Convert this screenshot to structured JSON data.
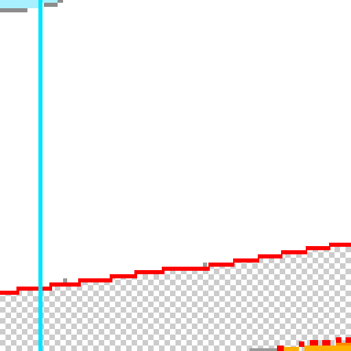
{
  "canvas": {
    "zoom_percent": 800,
    "colors": {
      "background": "#ffffff",
      "transparency_light": "#ffffff",
      "transparency_dark": "#cccccc",
      "guide_line": "#00e5ff",
      "stroke_red": "#ff0000",
      "stroke_gray": "#8c8c8c",
      "fill_light_cyan": "#a8f0ff",
      "fill_orange": "#ffb000"
    }
  }
}
